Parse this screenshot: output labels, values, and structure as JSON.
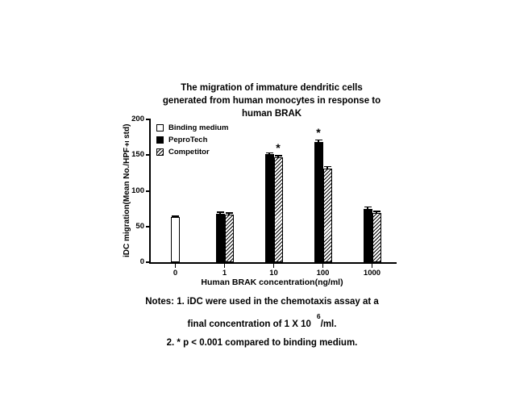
{
  "chart_data": {
    "type": "bar",
    "title": "The migration of immature dendritic cells generated from human monocytes in response to human BRAK",
    "title_lines": [
      "The migration of immature dendritic cells",
      "generated from human monocytes in response to",
      "human BRAK"
    ],
    "xlabel": "Human BRAK concentration(ng/ml)",
    "ylabel": "iDC migration(Mean No./HPF±std)",
    "ylim": [
      0,
      200
    ],
    "yticks": [
      0,
      50,
      100,
      150,
      200
    ],
    "categories": [
      "0",
      "1",
      "10",
      "100",
      "1000"
    ],
    "series": [
      {
        "name": "Binding medium",
        "style": "open",
        "values": [
          63,
          null,
          null,
          null,
          null
        ],
        "errors": [
          2,
          null,
          null,
          null,
          null
        ],
        "annotations": [
          null,
          null,
          null,
          null,
          null
        ]
      },
      {
        "name": "PeproTech",
        "style": "solid",
        "values": [
          null,
          68,
          151,
          168,
          75
        ],
        "errors": [
          null,
          3,
          3,
          4,
          3
        ],
        "annotations": [
          null,
          null,
          null,
          "*",
          null
        ]
      },
      {
        "name": "Competitor",
        "style": "hatch",
        "values": [
          null,
          67,
          147,
          131,
          69
        ],
        "errors": [
          null,
          3,
          3,
          4,
          3
        ],
        "annotations": [
          null,
          null,
          "*",
          null,
          null
        ]
      }
    ],
    "legend_position": "top-left",
    "grid": false,
    "colors": {
      "open": "#ffffff",
      "solid": "#000000",
      "hatch_stripes": "#000000"
    }
  },
  "notes": {
    "line1": "Notes: 1. iDC were used in the chemotaxis assay at a",
    "line2_prefix": "final concentration of 1 X 10",
    "line2_sup": "6",
    "line2_suffix": "/ml.",
    "line3": "2. * p < 0.001 compared to binding medium."
  }
}
